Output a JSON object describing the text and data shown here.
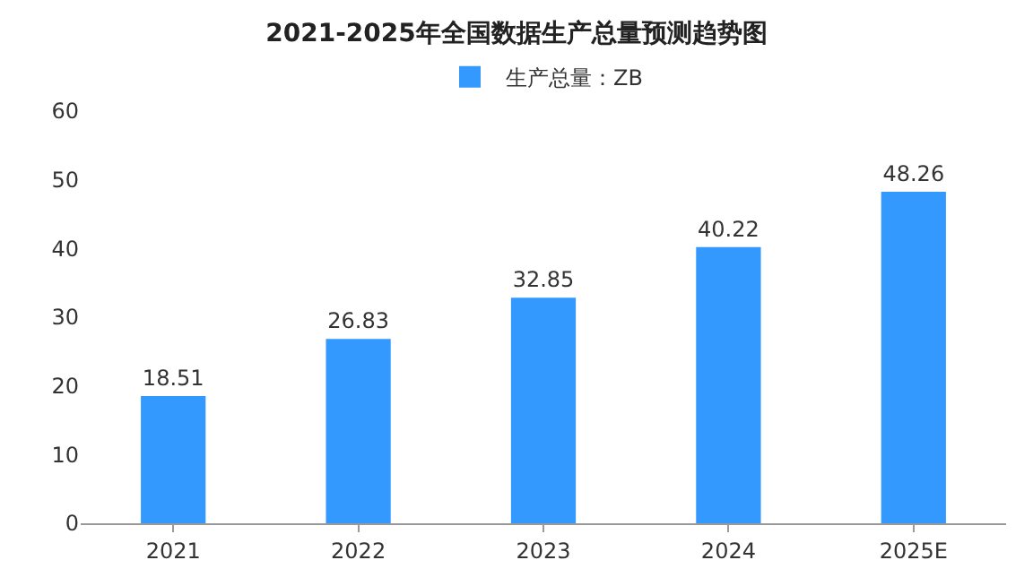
{
  "chart_data": {
    "type": "bar",
    "title": "2021-2025年全国数据生产总量预测趋势图",
    "categories": [
      "2021",
      "2022",
      "2023",
      "2024",
      "2025E"
    ],
    "series": [
      {
        "name": "生产总量：ZB",
        "color": "#3399ff",
        "values": [
          18.51,
          26.83,
          32.85,
          40.22,
          48.26
        ]
      }
    ],
    "ylim": [
      0,
      60
    ],
    "yticks": [
      0,
      10,
      20,
      30,
      40,
      50,
      60
    ],
    "grid": false,
    "legend": "top",
    "data_labels": true
  }
}
